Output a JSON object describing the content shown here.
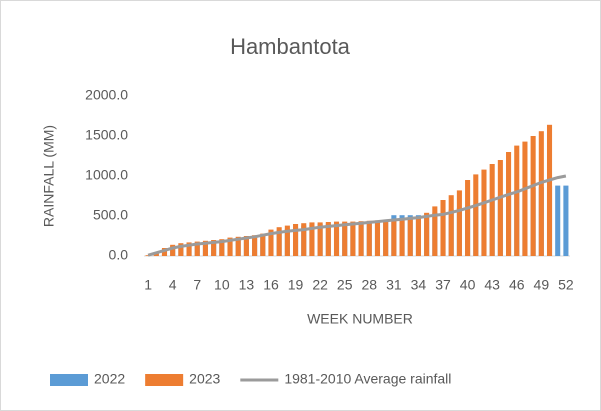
{
  "chart_data": {
    "type": "bar",
    "title": "Hambantota",
    "x_label": "WEEK NUMBER",
    "y_label": "RAINFALL (MM)",
    "categories": [
      1,
      null,
      null,
      4,
      null,
      null,
      7,
      null,
      null,
      10,
      null,
      null,
      13,
      null,
      null,
      16,
      null,
      null,
      19,
      null,
      null,
      22,
      null,
      null,
      25,
      null,
      null,
      28,
      null,
      null,
      31,
      null,
      null,
      34,
      null,
      null,
      37,
      null,
      null,
      40,
      null,
      null,
      43,
      null,
      null,
      46,
      null,
      null,
      49,
      null,
      null,
      52
    ],
    "series": [
      {
        "name": "2022",
        "type": "bar",
        "color": "#5b9bd5",
        "values": [
          5,
          30,
          80,
          120,
          140,
          150,
          160,
          170,
          180,
          190,
          200,
          210,
          220,
          230,
          250,
          290,
          320,
          340,
          360,
          380,
          390,
          400,
          405,
          410,
          415,
          420,
          425,
          430,
          435,
          440,
          510,
          510,
          510,
          510,
          520,
          540,
          560,
          580,
          600,
          620,
          650,
          680,
          710,
          740,
          770,
          800,
          830,
          850,
          860,
          870,
          880,
          880
        ]
      },
      {
        "name": "2023",
        "type": "bar",
        "color": "#ed7d31",
        "values": [
          10,
          40,
          100,
          140,
          160,
          170,
          180,
          190,
          200,
          210,
          230,
          240,
          250,
          260,
          280,
          330,
          360,
          380,
          400,
          410,
          420,
          420,
          425,
          430,
          430,
          430,
          435,
          440,
          445,
          450,
          460,
          470,
          480,
          490,
          540,
          620,
          700,
          760,
          820,
          950,
          1020,
          1080,
          1150,
          1200,
          1300,
          1380,
          1430,
          1500,
          1560,
          1640,
          null,
          null
        ]
      },
      {
        "name": "1981-2010 Average rainfall",
        "type": "line",
        "color": "#9b9b9b",
        "values": [
          10,
          40,
          70,
          100,
          120,
          135,
          150,
          160,
          170,
          180,
          195,
          210,
          225,
          240,
          260,
          280,
          295,
          310,
          320,
          330,
          345,
          360,
          370,
          380,
          390,
          400,
          410,
          420,
          430,
          440,
          450,
          460,
          470,
          480,
          495,
          510,
          520,
          545,
          570,
          600,
          630,
          665,
          700,
          735,
          770,
          800,
          840,
          880,
          920,
          950,
          980,
          1000
        ]
      }
    ],
    "ylim": [
      0,
      2000
    ],
    "yticks": [
      {
        "value": 0,
        "label": "0.0"
      },
      {
        "value": 500,
        "label": "500.0"
      },
      {
        "value": 1000,
        "label": "1000.0"
      },
      {
        "value": 1500,
        "label": "1500.0"
      },
      {
        "value": 2000,
        "label": "2000.0"
      }
    ],
    "grid": false,
    "legend": "bottom"
  }
}
